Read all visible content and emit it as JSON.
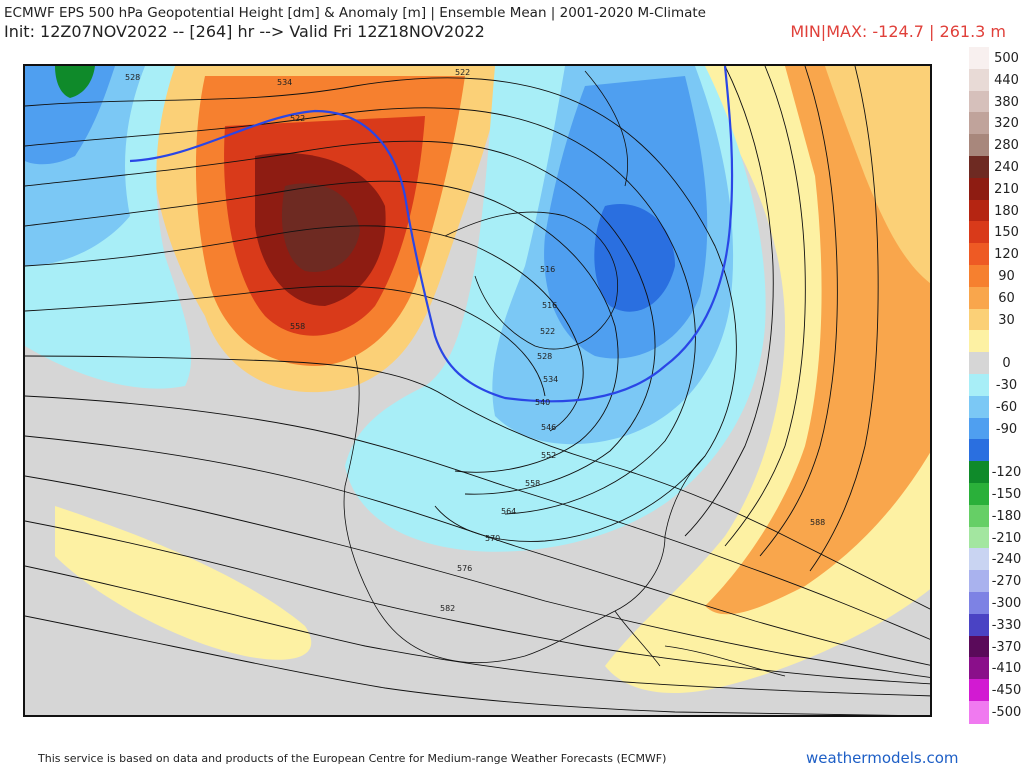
{
  "header": {
    "title": "ECMWF EPS 500 hPa Geopotential Height [dm] & Anomaly [m] | Ensemble Mean | 2001-2020 M-Climate",
    "subtitle": "Init: 12Z07NOV2022 -- [264] hr --> Valid Fri 12Z18NOV2022",
    "minmax": "MIN|MAX: -124.7 | 261.3 m"
  },
  "colors": {
    "accent_red": "#e0403a",
    "site_blue": "#1e5fc6",
    "map_gray": "#d6d6d6",
    "contour": "#111111",
    "zero_line": "#2a46e6"
  },
  "colorbar": [
    {
      "label": "500",
      "color": "#f8f0ef"
    },
    {
      "label": "440",
      "color": "#e8dad6"
    },
    {
      "label": "380",
      "color": "#d6c0bb"
    },
    {
      "label": "320",
      "color": "#c0a39b"
    },
    {
      "label": "280",
      "color": "#a8877c"
    },
    {
      "label": "240",
      "color": "#6e2a22"
    },
    {
      "label": "210",
      "color": "#8e1c12"
    },
    {
      "label": "180",
      "color": "#b52512"
    },
    {
      "label": "150",
      "color": "#d93a1a"
    },
    {
      "label": "120",
      "color": "#ee5a24"
    },
    {
      "label": "90",
      "color": "#f6802f"
    },
    {
      "label": "60",
      "color": "#f9a64c"
    },
    {
      "label": "30",
      "color": "#fbd077"
    },
    {
      "label": "",
      "color": "#fdf1a3"
    },
    {
      "label": "0",
      "color": "#d6d6d6"
    },
    {
      "label": "-30",
      "color": "#a8eef7"
    },
    {
      "label": "-60",
      "color": "#7bc8f5"
    },
    {
      "label": "-90",
      "color": "#4f9ff0"
    },
    {
      "label": "",
      "color": "#2a6fe0"
    },
    {
      "label": "-120",
      "color": "#0f8a2a"
    },
    {
      "label": "-150",
      "color": "#2ab03a"
    },
    {
      "label": "-180",
      "color": "#66cf66"
    },
    {
      "label": "-210",
      "color": "#a3e6a0"
    },
    {
      "label": "-240",
      "color": "#c9d4f2"
    },
    {
      "label": "-270",
      "color": "#a9b2ee"
    },
    {
      "label": "-300",
      "color": "#7d82e4"
    },
    {
      "label": "-330",
      "color": "#4a43c4"
    },
    {
      "label": "-370",
      "color": "#5a0a5a"
    },
    {
      "label": "-410",
      "color": "#8a0f8a"
    },
    {
      "label": "-450",
      "color": "#d21ad2"
    },
    {
      "label": "-500",
      "color": "#f07af0"
    }
  ],
  "contours": {
    "labels": [
      "528",
      "534",
      "522",
      "522",
      "558",
      "516",
      "516",
      "522",
      "528",
      "534",
      "540",
      "546",
      "552",
      "558",
      "564",
      "570",
      "576",
      "582",
      "588"
    ]
  },
  "footer": {
    "note": "This service is based on data and products of the European Centre for Medium-range Weather Forecasts (ECMWF)",
    "site": "weathermodels.com"
  }
}
